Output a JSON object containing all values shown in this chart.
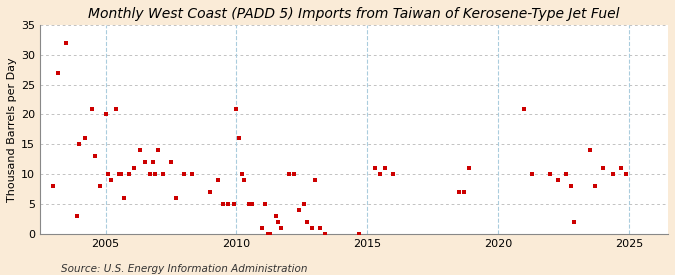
{
  "title": "Monthly West Coast (PADD 5) Imports from Taiwan of Kerosene-Type Jet Fuel",
  "ylabel": "Thousand Barrels per Day",
  "source": "Source: U.S. Energy Information Administration",
  "background_color": "#faebd7",
  "plot_background_color": "#ffffff",
  "marker_color": "#cc0000",
  "grid_color": "#aaaaaa",
  "vline_color": "#aaccdd",
  "ylim": [
    0,
    35
  ],
  "yticks": [
    0,
    5,
    10,
    15,
    20,
    25,
    30,
    35
  ],
  "xticks": [
    2005,
    2010,
    2015,
    2020,
    2025
  ],
  "xlim": [
    2002.5,
    2026.5
  ],
  "data_x": [
    2003.0,
    2003.2,
    2003.5,
    2003.9,
    2004.0,
    2004.2,
    2004.5,
    2004.6,
    2004.8,
    2005.0,
    2005.1,
    2005.2,
    2005.4,
    2005.5,
    2005.6,
    2005.7,
    2005.9,
    2006.1,
    2006.3,
    2006.5,
    2006.7,
    2006.8,
    2006.9,
    2007.0,
    2007.2,
    2007.5,
    2007.7,
    2008.0,
    2008.3,
    2009.0,
    2009.3,
    2009.5,
    2009.7,
    2009.9,
    2010.0,
    2010.1,
    2010.2,
    2010.3,
    2010.5,
    2010.6,
    2011.0,
    2011.1,
    2011.2,
    2011.3,
    2011.5,
    2011.6,
    2011.7,
    2012.0,
    2012.2,
    2012.4,
    2012.6,
    2012.7,
    2012.9,
    2013.0,
    2013.2,
    2013.4,
    2014.7,
    2015.3,
    2015.5,
    2015.7,
    2016.0,
    2018.5,
    2018.7,
    2018.9,
    2021.0,
    2021.3,
    2022.0,
    2022.3,
    2022.6,
    2022.8,
    2022.9,
    2023.5,
    2023.7,
    2024.0,
    2024.4,
    2024.7,
    2024.9
  ],
  "data_y": [
    8,
    27,
    32,
    3,
    15,
    16,
    21,
    13,
    8,
    20,
    10,
    9,
    21,
    10,
    10,
    6,
    10,
    11,
    14,
    12,
    10,
    12,
    10,
    14,
    10,
    12,
    6,
    10,
    10,
    7,
    9,
    5,
    5,
    5,
    21,
    16,
    10,
    9,
    5,
    5,
    1,
    5,
    0,
    0,
    3,
    2,
    1,
    10,
    10,
    4,
    5,
    2,
    1,
    9,
    1,
    0,
    0,
    11,
    10,
    11,
    10,
    7,
    7,
    11,
    21,
    10,
    10,
    9,
    10,
    8,
    2,
    14,
    8,
    11,
    10,
    11,
    10
  ],
  "title_fontsize": 10,
  "axis_fontsize": 8,
  "source_fontsize": 7.5
}
